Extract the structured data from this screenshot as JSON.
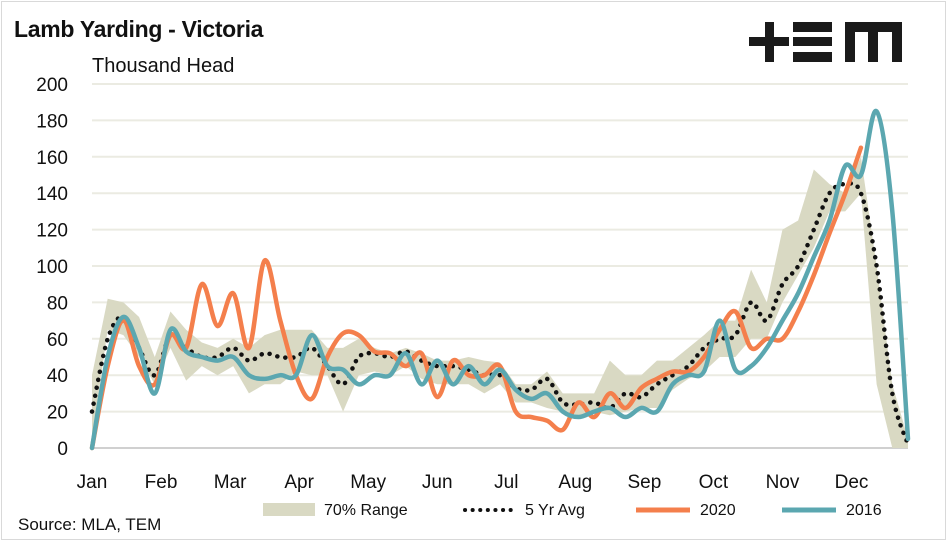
{
  "title": "Lamb Yarding - Victoria",
  "unit_label": "Thousand Head",
  "source": "Source: MLA, TEM",
  "logo_text": "+EM",
  "colors": {
    "range": "#d9d9c3",
    "avg": "#111111",
    "s2020": "#f47f4c",
    "s2016": "#5ba7b0",
    "grid": "#ebebe2"
  },
  "chart_data": {
    "type": "line",
    "title": "Lamb Yarding - Victoria",
    "ylabel": "Thousand Head",
    "ylim": [
      0,
      200
    ],
    "yticks": [
      0,
      20,
      40,
      60,
      80,
      100,
      120,
      140,
      160,
      180,
      200
    ],
    "xticks": [
      "Jan",
      "Feb",
      "Mar",
      "Apr",
      "May",
      "Jun",
      "Jul",
      "Aug",
      "Sep",
      "Oct",
      "Nov",
      "Dec"
    ],
    "x_unit": "week",
    "grid": true,
    "legend_position": "bottom",
    "range_70": {
      "name": "70% Range",
      "low": [
        5,
        65,
        62,
        50,
        35,
        55,
        37,
        45,
        40,
        45,
        30,
        35,
        35,
        42,
        40,
        40,
        20,
        40,
        42,
        40,
        45,
        38,
        35,
        35,
        35,
        30,
        35,
        25,
        25,
        22,
        20,
        18,
        20,
        18,
        20,
        22,
        22,
        32,
        38,
        42,
        50,
        50,
        60,
        60,
        80,
        95,
        110,
        130,
        130,
        140,
        35,
        0,
        0
      ],
      "high": [
        40,
        82,
        80,
        72,
        50,
        75,
        65,
        58,
        55,
        60,
        55,
        62,
        65,
        65,
        65,
        55,
        55,
        60,
        55,
        52,
        55,
        52,
        48,
        48,
        50,
        48,
        47,
        35,
        35,
        42,
        30,
        30,
        30,
        48,
        40,
        40,
        48,
        48,
        55,
        62,
        70,
        70,
        98,
        80,
        120,
        125,
        153,
        145,
        140,
        160,
        100,
        35,
        5
      ]
    },
    "series": [
      {
        "name": "5 Yr Avg",
        "values": [
          20,
          60,
          72,
          55,
          40,
          62,
          55,
          50,
          50,
          55,
          48,
          52,
          50,
          50,
          55,
          45,
          35,
          50,
          52,
          50,
          53,
          48,
          45,
          45,
          43,
          40,
          40,
          33,
          32,
          38,
          25,
          24,
          25,
          22,
          30,
          28,
          35,
          40,
          45,
          55,
          60,
          62,
          80,
          70,
          90,
          100,
          120,
          140,
          145,
          140,
          100,
          30,
          2
        ]
      },
      {
        "name": "2020",
        "values": [
          0,
          45,
          70,
          45,
          35,
          62,
          55,
          90,
          67,
          85,
          55,
          103,
          70,
          40,
          27,
          50,
          63,
          62,
          53,
          52,
          45,
          52,
          28,
          48,
          40,
          40,
          45,
          20,
          17,
          15,
          10,
          25,
          17,
          30,
          22,
          33,
          38,
          42,
          42,
          50,
          65,
          75,
          55,
          60,
          60,
          75,
          95,
          118,
          140,
          165
        ]
      },
      {
        "name": "2016",
        "values": [
          0,
          50,
          72,
          55,
          30,
          65,
          53,
          50,
          48,
          50,
          40,
          38,
          40,
          40,
          62,
          45,
          43,
          35,
          40,
          40,
          52,
          35,
          48,
          35,
          45,
          35,
          43,
          32,
          27,
          30,
          20,
          17,
          20,
          22,
          17,
          22,
          20,
          35,
          40,
          42,
          70,
          43,
          45,
          55,
          70,
          85,
          105,
          125,
          155,
          150,
          185,
          130,
          5
        ]
      }
    ]
  }
}
